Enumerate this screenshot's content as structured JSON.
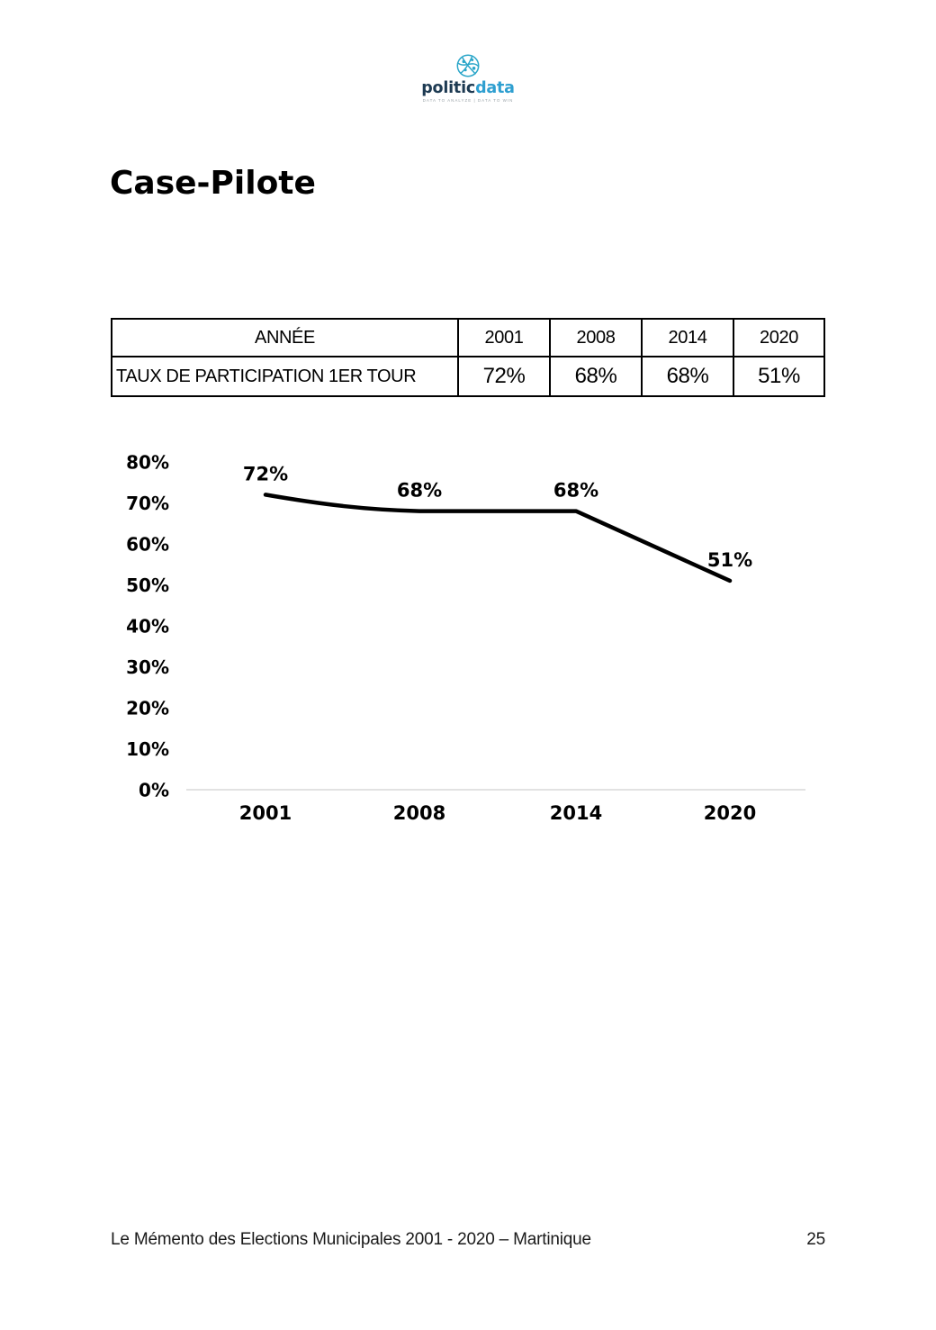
{
  "logo": {
    "icon": "network-globe-icon",
    "brand_primary": "politic",
    "brand_secondary": "data",
    "tagline": "DATA TO ANALYZE | DATA TO WIN",
    "icon_color": "#2ba6c9",
    "primary_color": "#1d3a52",
    "secondary_color": "#2e9fd0"
  },
  "heading": {
    "title": "Case-Pilote"
  },
  "table": {
    "header": {
      "label": "ANNÉE",
      "years": [
        "2001",
        "2008",
        "2014",
        "2020"
      ]
    },
    "row": {
      "label": "TAUX DE PARTICIPATION 1ER TOUR",
      "values": [
        "72%",
        "68%",
        "68%",
        "51%"
      ]
    }
  },
  "chart_data": {
    "type": "line",
    "title": "",
    "categories": [
      "2001",
      "2008",
      "2014",
      "2020"
    ],
    "values": [
      72,
      68,
      68,
      51
    ],
    "value_labels": [
      "72%",
      "68%",
      "68%",
      "51%"
    ],
    "y_ticks": [
      "80%",
      "70%",
      "60%",
      "50%",
      "40%",
      "30%",
      "20%",
      "10%",
      "0%"
    ],
    "ylim": [
      0,
      80
    ],
    "xlabel": "",
    "ylabel": "",
    "grid": false,
    "legend": "none",
    "smooth": true,
    "line_color": "#000000",
    "axis_color": "#d9d9d9"
  },
  "footer": {
    "text": "Le Mémento des Elections Municipales 2001 - 2020 – Martinique",
    "page_number": "25"
  }
}
